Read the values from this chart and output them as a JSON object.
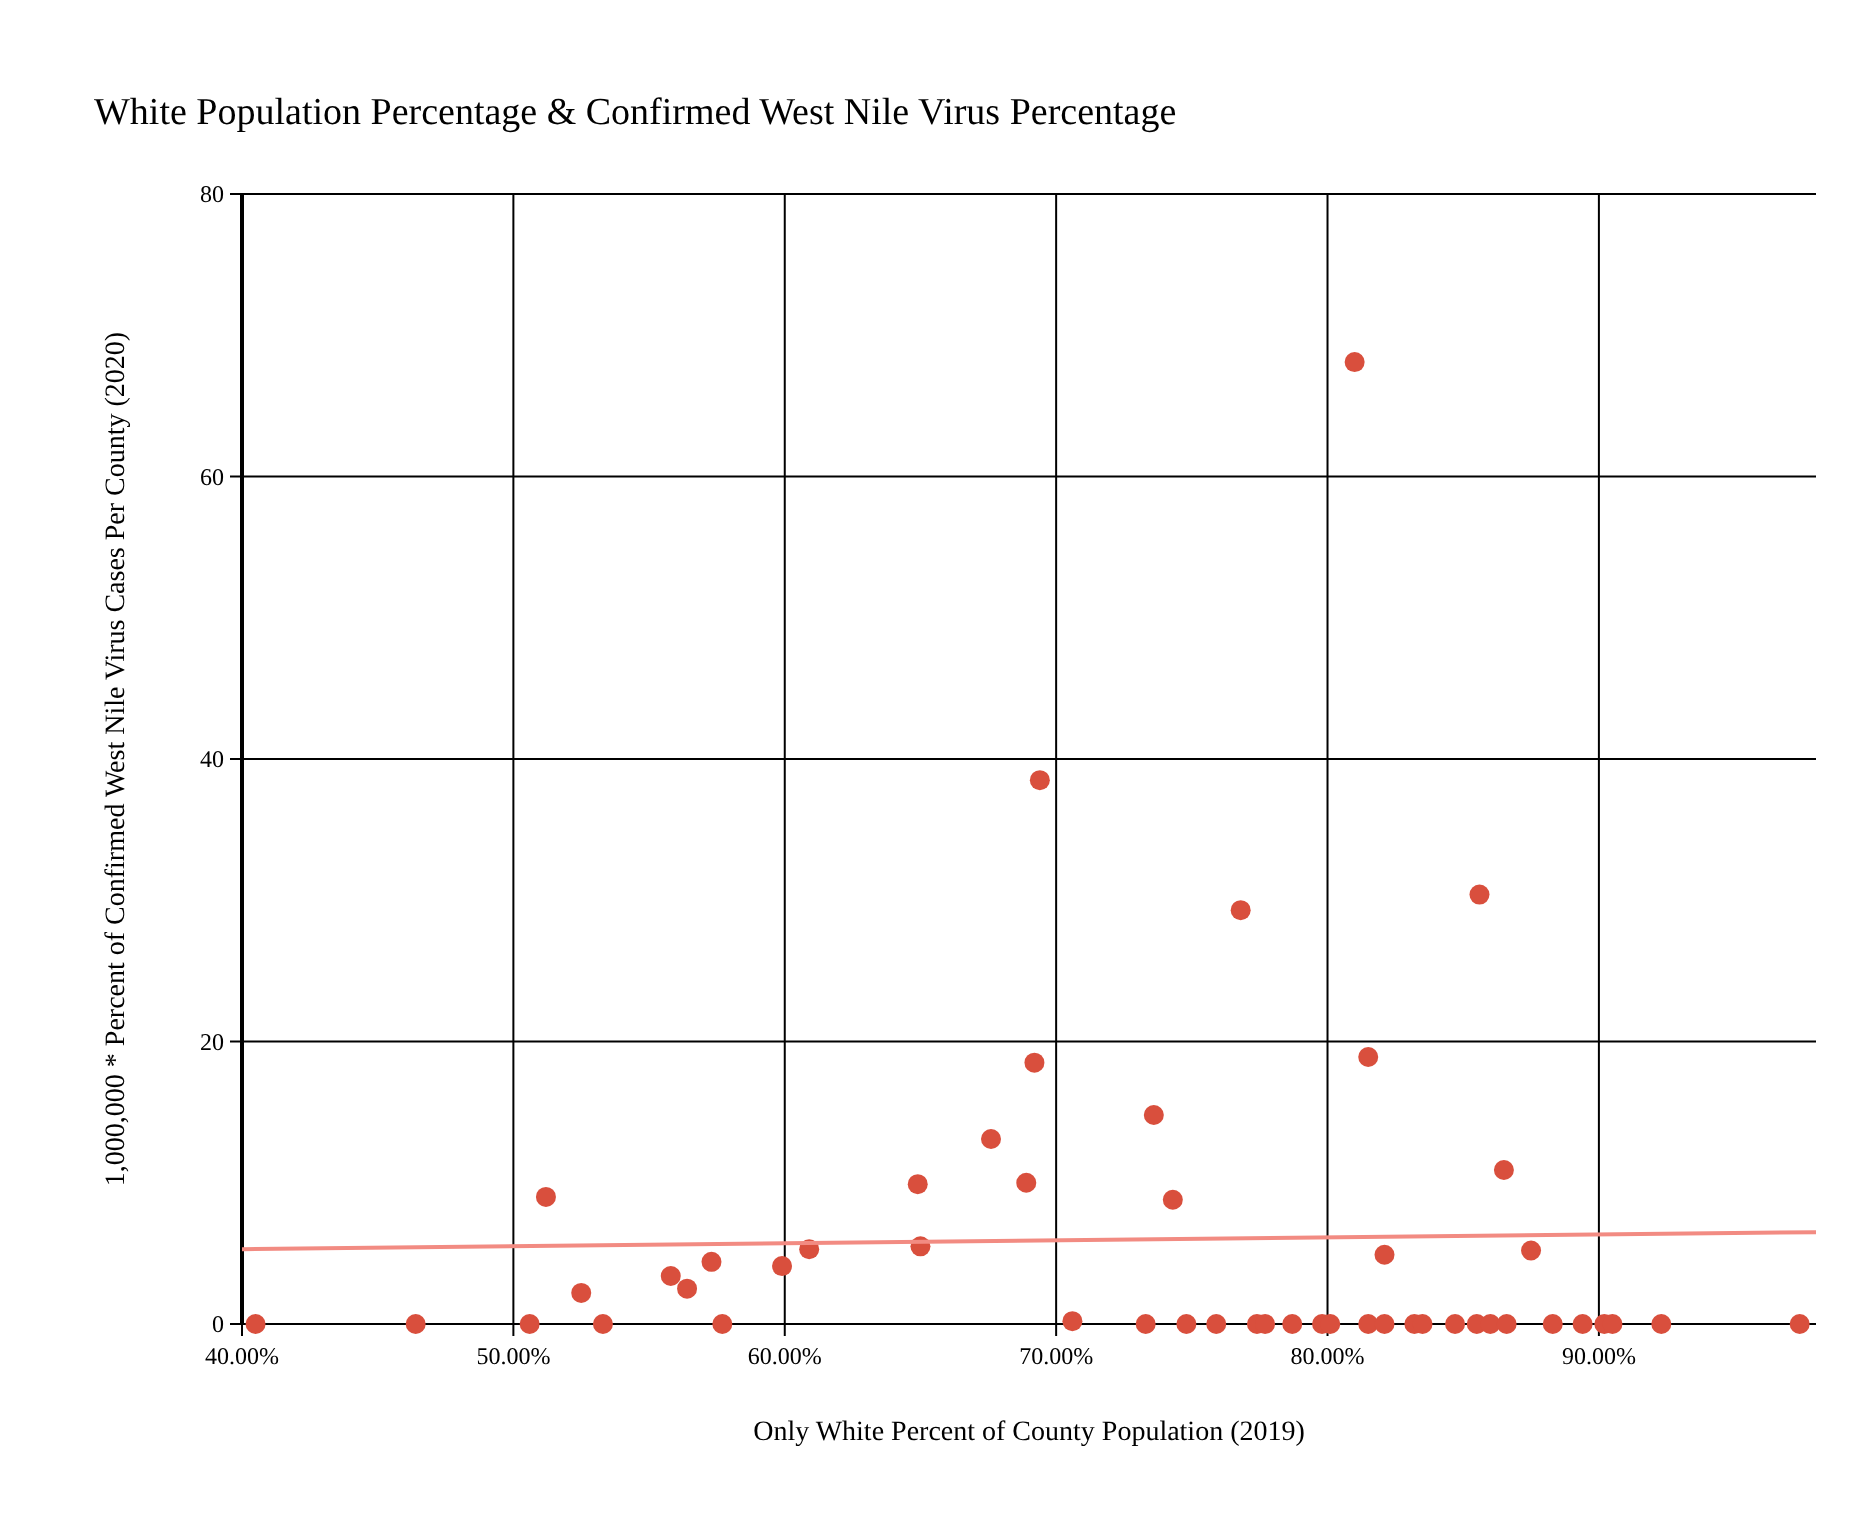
{
  "chart_data": {
    "type": "scatter",
    "title": "White Population Percentage & Confirmed West Nile Virus Percentage",
    "xlabel": "Only White Percent of County Population (2019)",
    "ylabel": "1,000,000 * Percent of Confirmed West Nile Virus Cases Per County (2020)",
    "xlim": [
      40,
      98
    ],
    "xticks": [
      {
        "value": 40,
        "label": "40.00%"
      },
      {
        "value": 50,
        "label": "50.00%"
      },
      {
        "value": 60,
        "label": "60.00%"
      },
      {
        "value": 70,
        "label": "70.00%"
      },
      {
        "value": 80,
        "label": "80.00%"
      },
      {
        "value": 90,
        "label": "90.00%"
      }
    ],
    "ylim": [
      0,
      80
    ],
    "yticks": [
      0,
      20,
      40,
      60,
      80
    ],
    "grid": true,
    "marker": "circle",
    "series": [
      {
        "color": "#d94f3d",
        "x": [
          40.5,
          46.4,
          50.6,
          53.3,
          57.7,
          51.2,
          52.5,
          55.8,
          56.4,
          57.3,
          59.9,
          60.9,
          64.9,
          65.0,
          67.6,
          68.9,
          69.2,
          70.6,
          69.4,
          81.0,
          73.3,
          74.8,
          75.9,
          77.4,
          77.7,
          78.7,
          79.8,
          80.1,
          81.5,
          82.1,
          83.2,
          83.5,
          84.7,
          85.5,
          86.0,
          86.6,
          88.3,
          89.4,
          90.2,
          90.5,
          92.3,
          97.4,
          73.6,
          74.3,
          76.8,
          81.5,
          85.6,
          86.5,
          82.1,
          87.5
        ],
        "values": [
          0,
          0,
          0,
          0,
          0,
          9.0,
          2.2,
          3.4,
          2.5,
          4.4,
          4.1,
          5.3,
          9.9,
          5.5,
          13.1,
          10.0,
          18.5,
          0.2,
          38.5,
          68.1,
          0,
          0,
          0,
          0,
          0,
          0,
          0,
          0,
          0,
          0,
          0,
          0,
          0,
          0,
          0,
          0,
          0,
          0,
          0,
          0,
          0,
          0,
          14.8,
          8.8,
          29.3,
          18.9,
          30.4,
          10.9,
          4.9,
          5.2
        ]
      },
      {
        "type": "line",
        "color": "#f28b82",
        "x": [
          40,
          98
        ],
        "values": [
          5.3,
          6.5
        ],
        "marker": "none",
        "line_style": "solid"
      }
    ]
  }
}
